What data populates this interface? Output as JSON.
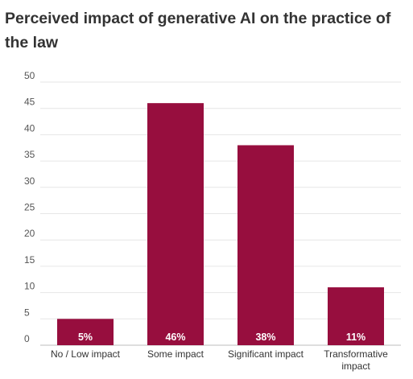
{
  "chart_data": {
    "type": "bar",
    "title": "Perceived impact of generative AI on the practice of the law",
    "categories": [
      "No / Low impact",
      "Some impact",
      "Significant impact",
      "Transformative impact"
    ],
    "values": [
      5,
      46,
      38,
      11
    ],
    "data_labels": [
      "5%",
      "46%",
      "38%",
      "11%"
    ],
    "ylim": [
      0,
      50
    ],
    "yticks": [
      0,
      5,
      10,
      15,
      20,
      25,
      30,
      35,
      40,
      45,
      50
    ],
    "xlabel": "",
    "ylabel": "",
    "grid": true,
    "legend": "none",
    "bar_color": "#970E3E"
  }
}
